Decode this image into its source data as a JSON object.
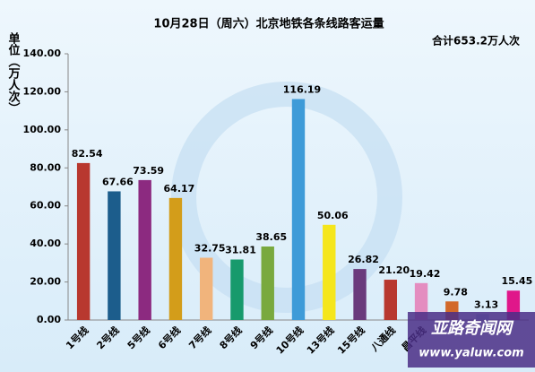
{
  "chart_data": {
    "type": "bar",
    "title": "10月28日（周六）北京地铁各条线路客运量",
    "y_label": "单位（万人次）",
    "annotation": "合计653.2万人次",
    "watermark": [
      "亚路奇闻网",
      "www.yaluw.com"
    ],
    "categories": [
      "1号线",
      "2号线",
      "5号线",
      "6号线",
      "7号线",
      "8号线",
      "9号线",
      "10号线",
      "13号线",
      "15号线",
      "八通线",
      "昌平线",
      null,
      null,
      null
    ],
    "values": [
      82.54,
      67.66,
      73.59,
      64.17,
      32.75,
      31.81,
      38.65,
      116.19,
      50.06,
      26.82,
      21.2,
      19.42,
      9.78,
      3.13,
      15.45
    ],
    "value_labels": [
      "82.54",
      "67.66",
      "73.59",
      "64.17",
      "32.75",
      "31.81",
      "38.65",
      "116.19",
      "50.06",
      "26.82",
      "21.20",
      "19.42",
      "9.78",
      "3.13",
      "15.45"
    ],
    "colors": [
      "#b8382f",
      "#1c5d8c",
      "#8c2a80",
      "#d39d1a",
      "#f1b47c",
      "#179a6c",
      "#79a93e",
      "#3e9bd8",
      "#f5e61c",
      "#6a3a7c",
      "#b8382f",
      "#e48dc0",
      "#d2692a",
      "#9fc7e6",
      "#e0178a"
    ],
    "ylim": [
      0,
      140
    ],
    "yticks": [
      {
        "value": 0,
        "label": "0.00"
      },
      {
        "value": 20,
        "label": "20.00"
      },
      {
        "value": 40,
        "label": "40.00"
      },
      {
        "value": 60,
        "label": "60.00"
      },
      {
        "value": 80,
        "label": "80.00"
      },
      {
        "value": 100,
        "label": "100.00"
      },
      {
        "value": 120,
        "label": "120.00"
      },
      {
        "value": 140,
        "label": "140.00"
      }
    ]
  }
}
